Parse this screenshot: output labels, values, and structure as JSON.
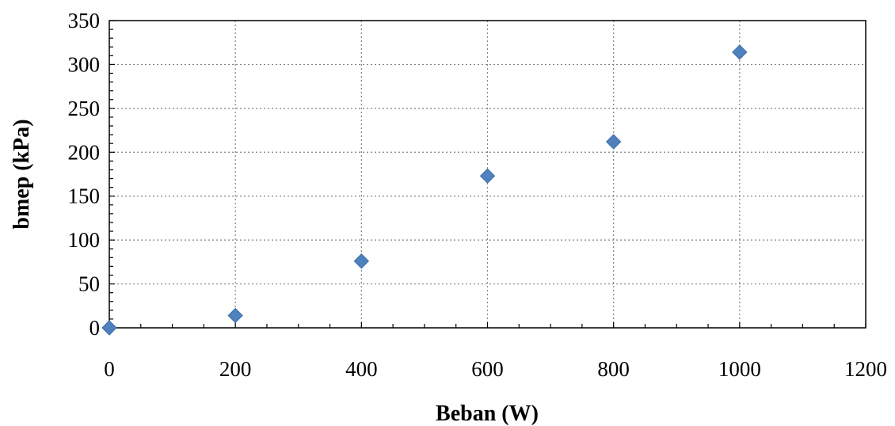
{
  "chart_data": {
    "type": "scatter",
    "title": "",
    "xlabel": "Beban (W)",
    "ylabel": "bmep (kPa)",
    "xlim": [
      0,
      1200
    ],
    "ylim": [
      0,
      350
    ],
    "x_ticks": [
      0,
      200,
      400,
      600,
      800,
      1000,
      1200
    ],
    "y_ticks": [
      0,
      50,
      100,
      150,
      200,
      250,
      300,
      350
    ],
    "x_tick_labels": [
      "0",
      "200",
      "400",
      "600",
      "800",
      "1000",
      "1200"
    ],
    "y_tick_labels": [
      "0",
      "50",
      "100",
      "150",
      "200",
      "250",
      "300",
      "350"
    ],
    "grid": true,
    "grid_style": "dotted",
    "marker": "diamond",
    "marker_color": "#4f81bd",
    "legend": "none",
    "series": [
      {
        "x": [
          0,
          200,
          400,
          600,
          800,
          1000
        ],
        "y": [
          0,
          14,
          76,
          173,
          212,
          314
        ]
      }
    ]
  }
}
